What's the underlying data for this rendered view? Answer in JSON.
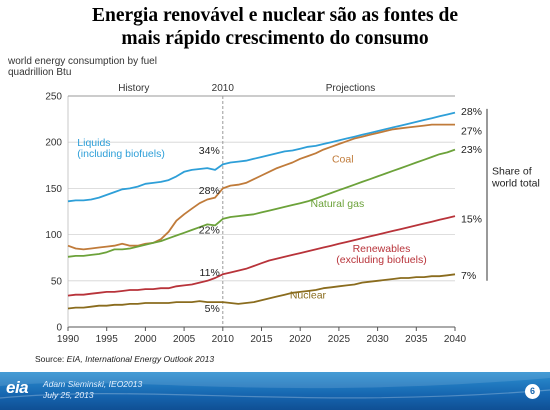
{
  "slide": {
    "title_line1": "Energia renovável e nuclear são as fontes de",
    "title_line2": "mais rápido crescimento do consumo"
  },
  "chart_data": {
    "type": "line",
    "ylabel_line1": "world energy consumption by fuel",
    "ylabel_line2": "quadrillion Btu",
    "xlim": [
      1990,
      2040
    ],
    "ylim": [
      0,
      250
    ],
    "x_ticks": [
      "1990",
      "1995",
      "2000",
      "2005",
      "2010",
      "2015",
      "2020",
      "2025",
      "2030",
      "2035",
      "2040"
    ],
    "y_ticks": [
      "0",
      "50",
      "100",
      "150",
      "200",
      "250"
    ],
    "grid": true,
    "divider_year": 2010,
    "section_labels": {
      "history": "History",
      "divider": "2010",
      "projections": "Projections"
    },
    "share_label": "Share of\nworld total",
    "x": [
      1990,
      1991,
      1992,
      1993,
      1994,
      1995,
      1996,
      1997,
      1998,
      1999,
      2000,
      2001,
      2002,
      2003,
      2004,
      2005,
      2006,
      2007,
      2008,
      2009,
      2010,
      2011,
      2012,
      2013,
      2014,
      2015,
      2016,
      2017,
      2018,
      2019,
      2020,
      2021,
      2022,
      2023,
      2024,
      2025,
      2026,
      2027,
      2028,
      2029,
      2030,
      2031,
      2032,
      2033,
      2034,
      2035,
      2036,
      2037,
      2038,
      2039,
      2040
    ],
    "series": [
      {
        "name": "Liquids\n(including biofuels)",
        "color": "#2e9fd8",
        "share_2010": "34%",
        "share_2040": "28%",
        "values": [
          136,
          137,
          137,
          138,
          140,
          143,
          146,
          149,
          150,
          152,
          155,
          156,
          157,
          159,
          163,
          168,
          170,
          171,
          172,
          170,
          176,
          178,
          179,
          180,
          182,
          184,
          186,
          188,
          190,
          191,
          193,
          195,
          196,
          198,
          200,
          202,
          204,
          206,
          208,
          210,
          212,
          214,
          216,
          218,
          220,
          222,
          224,
          226,
          228,
          230,
          232
        ]
      },
      {
        "name": "Coal",
        "color": "#c07b3a",
        "share_2010": "28%",
        "share_2040": "27%",
        "values": [
          88,
          85,
          84,
          85,
          86,
          87,
          88,
          90,
          88,
          88,
          90,
          91,
          95,
          103,
          115,
          122,
          128,
          134,
          138,
          140,
          150,
          153,
          154,
          156,
          160,
          164,
          168,
          172,
          175,
          178,
          182,
          185,
          188,
          192,
          195,
          198,
          201,
          204,
          206,
          208,
          210,
          212,
          214,
          215,
          216,
          217,
          218,
          219,
          219,
          219,
          219
        ]
      },
      {
        "name": "Natural gas",
        "color": "#6ca23a",
        "share_2010": "22%",
        "share_2040": "23%",
        "values": [
          76,
          77,
          77,
          78,
          79,
          81,
          84,
          84,
          85,
          87,
          89,
          91,
          93,
          96,
          99,
          102,
          105,
          108,
          111,
          110,
          117,
          119,
          120,
          121,
          122,
          124,
          126,
          128,
          130,
          132,
          134,
          136,
          139,
          142,
          145,
          148,
          151,
          154,
          157,
          160,
          163,
          166,
          169,
          172,
          175,
          178,
          181,
          184,
          187,
          189,
          192
        ]
      },
      {
        "name": "Renewables\n(excluding biofuels)",
        "color": "#b8333a",
        "share_2010": "11%",
        "share_2040": "15%",
        "values": [
          34,
          35,
          35,
          36,
          37,
          38,
          38,
          39,
          40,
          40,
          41,
          41,
          42,
          42,
          44,
          45,
          46,
          48,
          50,
          53,
          57,
          59,
          61,
          63,
          66,
          69,
          72,
          74,
          76,
          78,
          80,
          82,
          84,
          86,
          88,
          90,
          92,
          94,
          96,
          98,
          100,
          102,
          104,
          106,
          108,
          110,
          112,
          114,
          116,
          118,
          120
        ]
      },
      {
        "name": "Nuclear",
        "color": "#8a6c1e",
        "share_2010": "5%",
        "share_2040": "7%",
        "values": [
          20,
          21,
          21,
          22,
          23,
          23,
          24,
          24,
          25,
          25,
          26,
          26,
          26,
          26,
          27,
          27,
          27,
          28,
          27,
          27,
          27,
          26,
          25,
          26,
          27,
          29,
          31,
          33,
          35,
          37,
          38,
          39,
          40,
          42,
          43,
          44,
          45,
          46,
          48,
          49,
          50,
          51,
          52,
          53,
          53,
          54,
          54,
          55,
          55,
          56,
          57
        ]
      }
    ]
  },
  "source": {
    "prefix": "Source: ",
    "text": "EIA, International Energy Outlook 2013"
  },
  "footer": {
    "logo": "eia",
    "presenter_name": "Adam Sieminski, IEO2013",
    "presenter_date": "July 25, 2013",
    "page_number": "6"
  }
}
